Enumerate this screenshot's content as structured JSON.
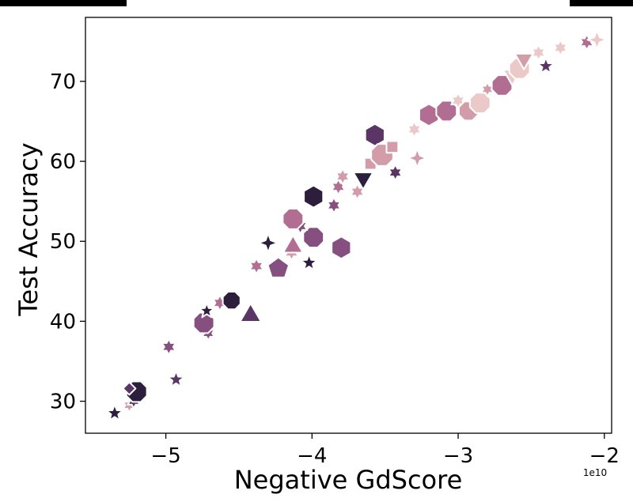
{
  "chart_data": {
    "type": "scatter",
    "title": "",
    "xlabel": "Negative GdScore",
    "ylabel": "Test Accuracy",
    "x_offset_label": "1e10",
    "xlim": [
      -55500000000.0,
      -19500000000.0
    ],
    "ylim": [
      26,
      78
    ],
    "xticks": [
      -50000000000.0,
      -40000000000.0,
      -30000000000.0,
      -20000000000.0
    ],
    "xtick_labels": [
      "−5",
      "−4",
      "−3",
      "−2"
    ],
    "yticks": [
      30,
      40,
      50,
      60,
      70
    ],
    "ytick_labels": [
      "30",
      "40",
      "50",
      "60",
      "70"
    ],
    "grid": false,
    "legend": "none",
    "palette": [
      "#2d1e3e",
      "#5a3566",
      "#85507f",
      "#b26e92",
      "#d29ca8",
      "#ecc9c9"
    ],
    "points": [
      {
        "x": -53500000000.0,
        "y": 28.5,
        "shape": "star5",
        "color": "#2d1e3e",
        "size": 11
      },
      {
        "x": -52500000000.0,
        "y": 29.5,
        "shape": "star6",
        "color": "#d29ca8",
        "size": 9
      },
      {
        "x": -52200000000.0,
        "y": 30.0,
        "shape": "star6",
        "color": "#5a3566",
        "size": 9
      },
      {
        "x": -52000000000.0,
        "y": 31.2,
        "shape": "octagon",
        "color": "#2d1e3e",
        "size": 14
      },
      {
        "x": -52500000000.0,
        "y": 31.6,
        "shape": "diamond",
        "color": "#5a3566",
        "size": 8
      },
      {
        "x": -49300000000.0,
        "y": 32.7,
        "shape": "star5",
        "color": "#5a3566",
        "size": 11
      },
      {
        "x": -49800000000.0,
        "y": 36.8,
        "shape": "star6",
        "color": "#85507f",
        "size": 10
      },
      {
        "x": -47100000000.0,
        "y": 38.5,
        "shape": "star6",
        "color": "#85507f",
        "size": 9
      },
      {
        "x": -47400000000.0,
        "y": 39.8,
        "shape": "octagon",
        "color": "#85507f",
        "size": 14
      },
      {
        "x": -47200000000.0,
        "y": 41.3,
        "shape": "star5",
        "color": "#2d1e3e",
        "size": 10
      },
      {
        "x": -46300000000.0,
        "y": 42.3,
        "shape": "star6",
        "color": "#b26e92",
        "size": 10
      },
      {
        "x": -45500000000.0,
        "y": 42.6,
        "shape": "octagon",
        "color": "#2d1e3e",
        "size": 12
      },
      {
        "x": -44200000000.0,
        "y": 40.7,
        "shape": "triangle",
        "color": "#5a3566",
        "size": 14
      },
      {
        "x": -43800000000.0,
        "y": 46.9,
        "shape": "star6",
        "color": "#b26e92",
        "size": 10
      },
      {
        "x": -43000000000.0,
        "y": 49.8,
        "shape": "star4",
        "color": "#2d1e3e",
        "size": 12
      },
      {
        "x": -42300000000.0,
        "y": 46.6,
        "shape": "pentagon",
        "color": "#85507f",
        "size": 14
      },
      {
        "x": -41400000000.0,
        "y": 48.6,
        "shape": "star6",
        "color": "#d29ca8",
        "size": 10
      },
      {
        "x": -41300000000.0,
        "y": 49.3,
        "shape": "triangle",
        "color": "#b26e92",
        "size": 13
      },
      {
        "x": -40200000000.0,
        "y": 47.3,
        "shape": "star5",
        "color": "#2d1e3e",
        "size": 11
      },
      {
        "x": -39900000000.0,
        "y": 50.5,
        "shape": "octagon",
        "color": "#85507f",
        "size": 14
      },
      {
        "x": -40800000000.0,
        "y": 51.9,
        "shape": "star6",
        "color": "#85507f",
        "size": 10
      },
      {
        "x": -41300000000.0,
        "y": 52.8,
        "shape": "octagon",
        "color": "#b26e92",
        "size": 14
      },
      {
        "x": -39900000000.0,
        "y": 55.6,
        "shape": "hexagon",
        "color": "#2d1e3e",
        "size": 14
      },
      {
        "x": -38000000000.0,
        "y": 49.2,
        "shape": "hexagon",
        "color": "#85507f",
        "size": 14
      },
      {
        "x": -38500000000.0,
        "y": 54.5,
        "shape": "star6",
        "color": "#85507f",
        "size": 10
      },
      {
        "x": -38200000000.0,
        "y": 56.8,
        "shape": "star6",
        "color": "#b26e92",
        "size": 10
      },
      {
        "x": -37900000000.0,
        "y": 58.1,
        "shape": "star6",
        "color": "#d29ca8",
        "size": 10
      },
      {
        "x": -36900000000.0,
        "y": 56.2,
        "shape": "star6",
        "color": "#d29ca8",
        "size": 10
      },
      {
        "x": -36500000000.0,
        "y": 57.9,
        "shape": "triangle_down",
        "color": "#2d1e3e",
        "size": 13
      },
      {
        "x": -36000000000.0,
        "y": 59.7,
        "shape": "square",
        "color": "#d29ca8",
        "size": 11
      },
      {
        "x": -35700000000.0,
        "y": 63.3,
        "shape": "hexagon",
        "color": "#5a3566",
        "size": 14
      },
      {
        "x": -35200000000.0,
        "y": 60.8,
        "shape": "octagon",
        "color": "#d29ca8",
        "size": 15
      },
      {
        "x": -34300000000.0,
        "y": 58.6,
        "shape": "star6",
        "color": "#5a3566",
        "size": 10
      },
      {
        "x": -34500000000.0,
        "y": 61.8,
        "shape": "square",
        "color": "#d29ca8",
        "size": 11
      },
      {
        "x": -33000000000.0,
        "y": 64.0,
        "shape": "star6",
        "color": "#ecc9c9",
        "size": 10
      },
      {
        "x": -32800000000.0,
        "y": 60.4,
        "shape": "star4",
        "color": "#d29ca8",
        "size": 12
      },
      {
        "x": -32000000000.0,
        "y": 65.8,
        "shape": "hexagon",
        "color": "#b26e92",
        "size": 14
      },
      {
        "x": -30800000000.0,
        "y": 66.3,
        "shape": "octagon",
        "color": "#b26e92",
        "size": 14
      },
      {
        "x": -30000000000.0,
        "y": 67.6,
        "shape": "star6",
        "color": "#ecc9c9",
        "size": 10
      },
      {
        "x": -29300000000.0,
        "y": 66.3,
        "shape": "octagon",
        "color": "#d29ca8",
        "size": 13
      },
      {
        "x": -28500000000.0,
        "y": 67.3,
        "shape": "octagon",
        "color": "#ecc9c9",
        "size": 14
      },
      {
        "x": -28000000000.0,
        "y": 69.0,
        "shape": "star6",
        "color": "#d29ca8",
        "size": 9
      },
      {
        "x": -27000000000.0,
        "y": 69.5,
        "shape": "octagon",
        "color": "#b26e92",
        "size": 14
      },
      {
        "x": -26300000000.0,
        "y": 70.8,
        "shape": "triangle_down",
        "color": "#ecc9c9",
        "size": 12
      },
      {
        "x": -25800000000.0,
        "y": 71.6,
        "shape": "octagon",
        "color": "#ecc9c9",
        "size": 14
      },
      {
        "x": -25500000000.0,
        "y": 72.8,
        "shape": "triangle_down",
        "color": "#d29ca8",
        "size": 12
      },
      {
        "x": -24500000000.0,
        "y": 73.6,
        "shape": "star6",
        "color": "#ecc9c9",
        "size": 10
      },
      {
        "x": -24000000000.0,
        "y": 71.9,
        "shape": "star5",
        "color": "#5a3566",
        "size": 11
      },
      {
        "x": -23000000000.0,
        "y": 74.2,
        "shape": "star6",
        "color": "#ecc9c9",
        "size": 10
      },
      {
        "x": -21200000000.0,
        "y": 74.9,
        "shape": "star6",
        "color": "#b26e92",
        "size": 10
      },
      {
        "x": -20500000000.0,
        "y": 75.2,
        "shape": "star4",
        "color": "#ecc9c9",
        "size": 12
      }
    ]
  }
}
